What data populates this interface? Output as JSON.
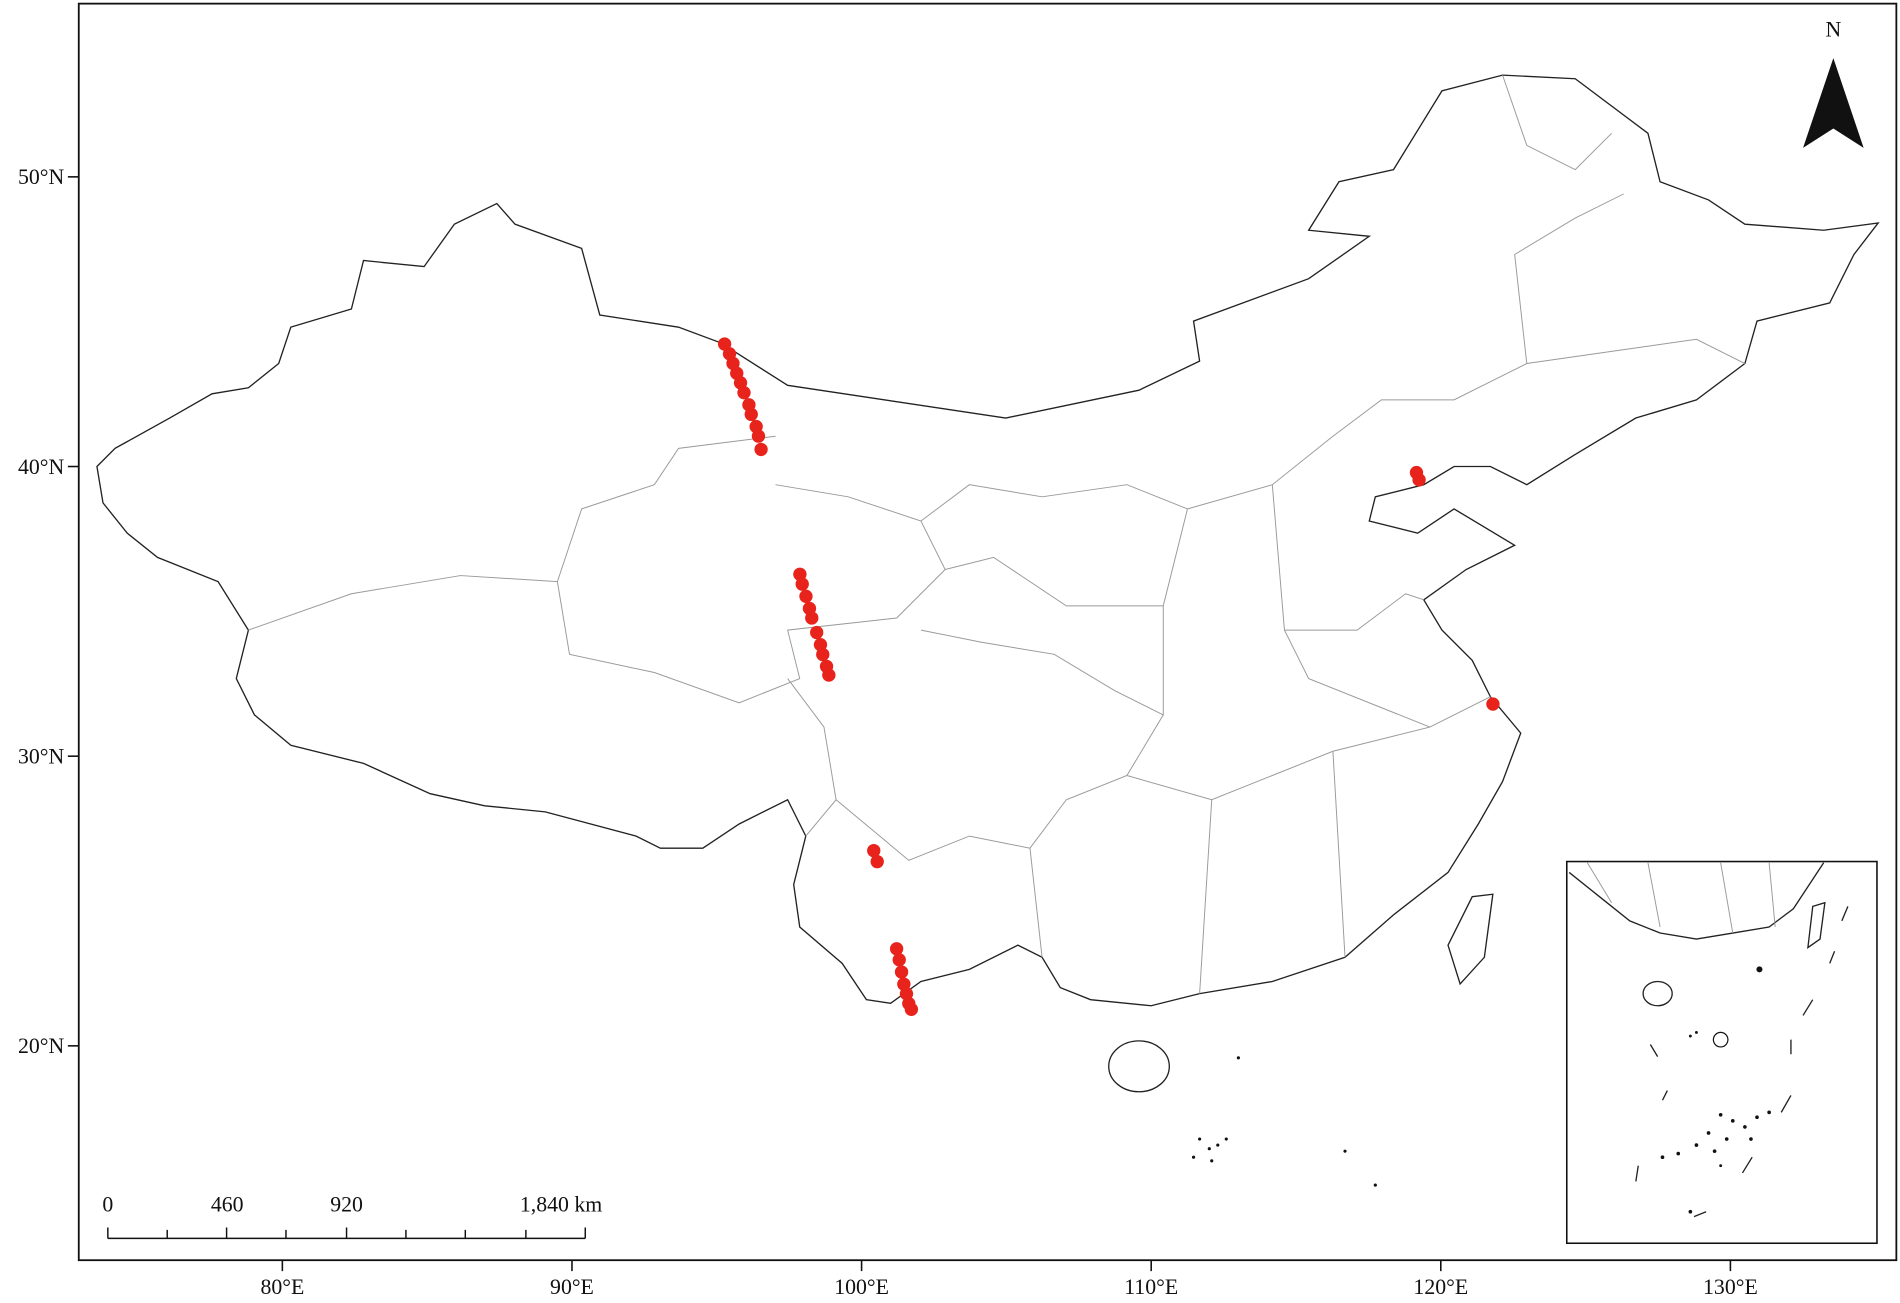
{
  "map": {
    "north_label": "N",
    "xlim": [
      72.97,
      135.73
    ],
    "ylim": [
      12.6,
      55.98
    ],
    "xticks": [
      {
        "value": 80,
        "label": "80°E"
      },
      {
        "value": 90,
        "label": "90°E"
      },
      {
        "value": 100,
        "label": "100°E"
      },
      {
        "value": 110,
        "label": "110°E"
      },
      {
        "value": 120,
        "label": "120°E"
      },
      {
        "value": 130,
        "label": "130°E"
      }
    ],
    "yticks": [
      {
        "value": 50,
        "label": "50°N"
      },
      {
        "value": 40,
        "label": "40°N"
      },
      {
        "value": 30,
        "label": "30°N"
      },
      {
        "value": 20,
        "label": "20°N"
      }
    ],
    "point_color": "#e8231b",
    "points": {
      "lon": [
        95.27,
        95.44,
        95.56,
        95.69,
        95.82,
        95.94,
        96.11,
        96.19,
        96.36,
        96.44,
        96.53,
        97.87,
        97.95,
        98.08,
        98.2,
        98.28,
        98.45,
        98.58,
        98.66,
        98.79,
        98.87,
        100.42,
        100.54,
        101.21,
        101.3,
        101.38,
        101.46,
        101.55,
        101.63,
        101.72,
        119.16,
        119.25,
        121.8
      ],
      "lat": [
        44.23,
        43.89,
        43.56,
        43.22,
        42.89,
        42.55,
        42.13,
        41.8,
        41.38,
        41.05,
        40.59,
        36.28,
        35.94,
        35.52,
        35.1,
        34.77,
        34.27,
        33.85,
        33.51,
        33.1,
        32.8,
        26.74,
        26.36,
        23.35,
        22.97,
        22.55,
        22.13,
        21.8,
        21.46,
        21.26,
        39.79,
        39.54,
        31.8
      ]
    },
    "scale_bar": {
      "ticks": [
        0,
        460,
        920,
        {
          "value": 1840,
          "label": "1,840 km"
        }
      ]
    }
  }
}
